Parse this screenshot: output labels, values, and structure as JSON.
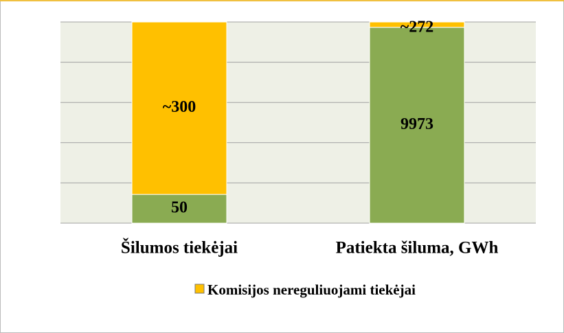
{
  "chart_data": {
    "type": "bar",
    "stacking": "percent",
    "categories": [
      "Šilumos tiekėjai",
      "Patiekta šiluma, GWh"
    ],
    "series": [
      {
        "color": "#8aab52",
        "values": [
          50,
          9973
        ]
      },
      {
        "name": "Komisijos nereguliuojami tiekėjai",
        "color": "#ffc000",
        "values": [
          300,
          272
        ],
        "value_labels": [
          "~300",
          "~272"
        ]
      }
    ],
    "ylim": [
      0,
      100
    ],
    "yticks": [
      0,
      20,
      40,
      60,
      80,
      100
    ],
    "grid": true,
    "legend": "bottom"
  }
}
